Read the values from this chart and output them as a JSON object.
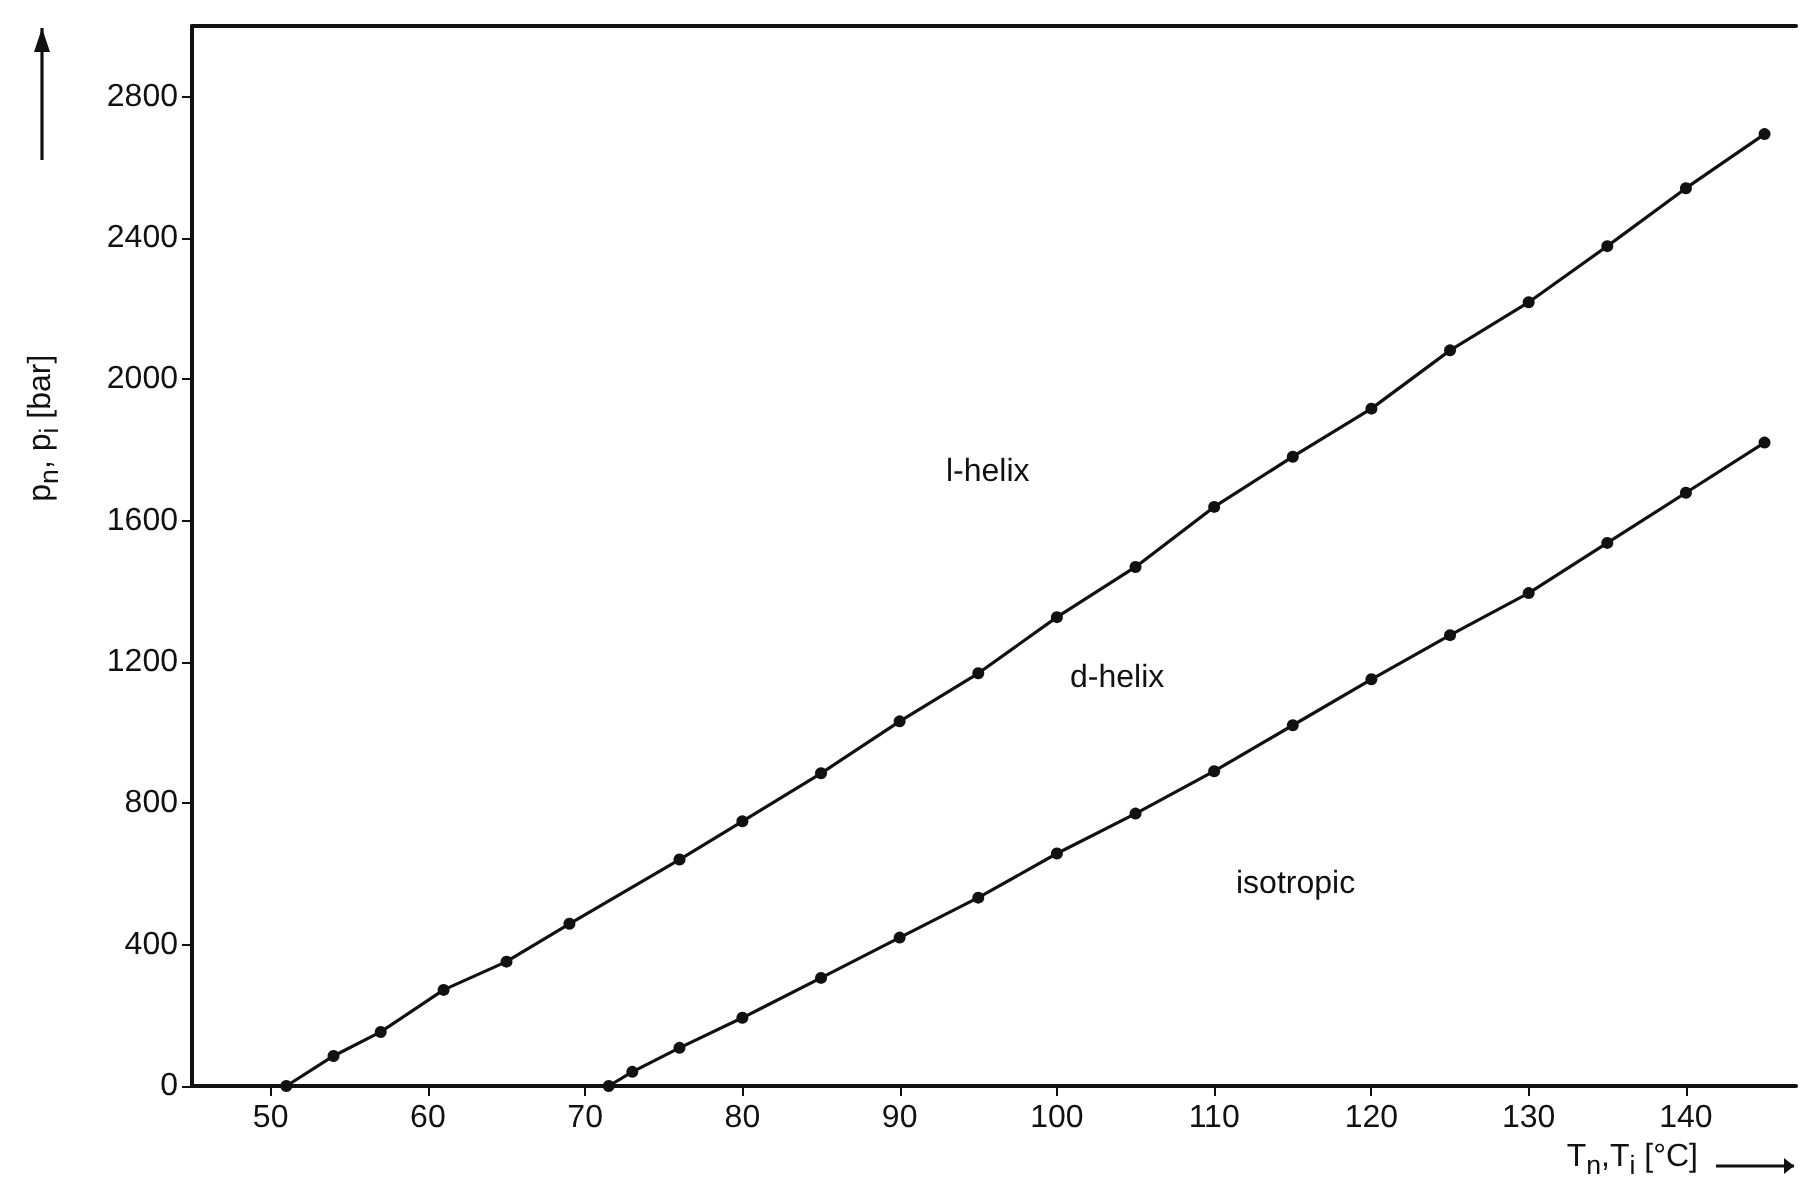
{
  "chart_data": {
    "type": "line",
    "xlabel": "T$_{n}$,T$_{i}$ [°C]",
    "ylabel": "p$_{n}$, p$_{i}$ [bar]",
    "annotations": [
      "l-helix",
      "d-helix",
      "isotropic"
    ],
    "series": [
      {
        "color": "#111111",
        "x": [
          51,
          54,
          57,
          61,
          65,
          69,
          76,
          80,
          85,
          90,
          95,
          100,
          105,
          110,
          115,
          120,
          125,
          130,
          135,
          140,
          145
        ],
        "values": [
          0,
          85,
          153,
          272,
          352,
          459,
          641,
          749,
          885,
          1032,
          1168,
          1327,
          1469,
          1639,
          1781,
          1917,
          2082,
          2218,
          2377,
          2541,
          2694
        ]
      },
      {
        "color": "#111111",
        "x": [
          71.5,
          73,
          76,
          80,
          85,
          90,
          95,
          100,
          105,
          110,
          115,
          120,
          125,
          130,
          135,
          140,
          145
        ],
        "values": [
          0,
          40,
          108,
          193,
          306,
          420,
          533,
          658,
          771,
          891,
          1021,
          1151,
          1276,
          1395,
          1537,
          1679,
          1821
        ]
      }
    ],
    "xlim": [
      45,
      147
    ],
    "xticks": [
      50,
      60,
      70,
      80,
      90,
      100,
      110,
      120,
      130,
      140
    ],
    "ylim": [
      0,
      3000
    ],
    "yticks": [
      0,
      400,
      800,
      1200,
      1600,
      2000,
      2400,
      2800
    ],
    "grid": false,
    "marker": "circle",
    "line_style": "solid"
  }
}
